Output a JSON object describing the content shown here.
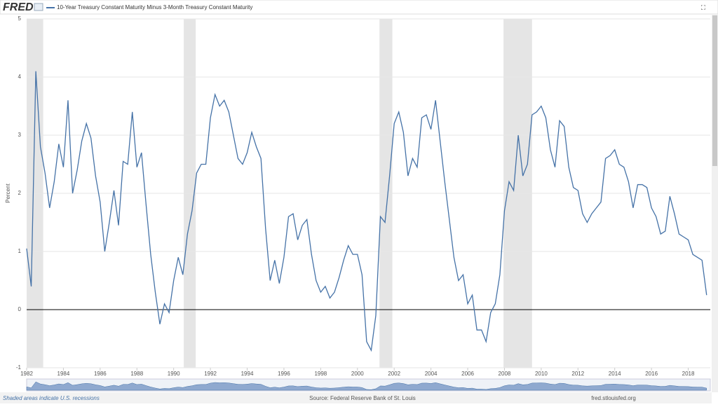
{
  "chart_data": {
    "type": "line",
    "brand": "FRED",
    "ylabel": "Percent",
    "x": [
      1982,
      1982.25,
      1982.5,
      1982.75,
      1983,
      1983.25,
      1983.5,
      1983.75,
      1984,
      1984.25,
      1984.5,
      1984.75,
      1985,
      1985.25,
      1985.5,
      1985.75,
      1986,
      1986.25,
      1986.5,
      1986.75,
      1987,
      1987.25,
      1987.5,
      1987.75,
      1988,
      1988.25,
      1988.5,
      1988.75,
      1989,
      1989.25,
      1989.5,
      1989.75,
      1990,
      1990.25,
      1990.5,
      1990.75,
      1991,
      1991.25,
      1991.5,
      1991.75,
      1992,
      1992.25,
      1992.5,
      1992.75,
      1993,
      1993.25,
      1993.5,
      1993.75,
      1994,
      1994.25,
      1994.5,
      1994.75,
      1995,
      1995.25,
      1995.5,
      1995.75,
      1996,
      1996.25,
      1996.5,
      1996.75,
      1997,
      1997.25,
      1997.5,
      1997.75,
      1998,
      1998.25,
      1998.5,
      1998.75,
      1999,
      1999.25,
      1999.5,
      1999.75,
      2000,
      2000.25,
      2000.5,
      2000.75,
      2001,
      2001.25,
      2001.5,
      2001.75,
      2002,
      2002.25,
      2002.5,
      2002.75,
      2003,
      2003.25,
      2003.5,
      2003.75,
      2004,
      2004.25,
      2004.5,
      2004.75,
      2005,
      2005.25,
      2005.5,
      2005.75,
      2006,
      2006.25,
      2006.5,
      2006.75,
      2007,
      2007.25,
      2007.5,
      2007.75,
      2008,
      2008.25,
      2008.5,
      2008.75,
      2009,
      2009.25,
      2009.5,
      2009.75,
      2010,
      2010.25,
      2010.5,
      2010.75,
      2011,
      2011.25,
      2011.5,
      2011.75,
      2012,
      2012.25,
      2012.5,
      2012.75,
      2013,
      2013.25,
      2013.5,
      2013.75,
      2014,
      2014.25,
      2014.5,
      2014.75,
      2015,
      2015.25,
      2015.5,
      2015.75,
      2016,
      2016.25,
      2016.5,
      2016.75,
      2017,
      2017.25,
      2017.5,
      2017.75,
      2018,
      2018.25,
      2018.5,
      2018.75,
      2019
    ],
    "series": [
      {
        "name": "10-Year Treasury Constant Maturity Minus 3-Month Treasury Constant Maturity",
        "color": "#4572a7",
        "values": [
          1.05,
          0.4,
          4.1,
          2.8,
          2.35,
          1.75,
          2.2,
          2.85,
          2.45,
          3.6,
          2.0,
          2.4,
          2.9,
          3.2,
          2.95,
          2.3,
          1.85,
          1.0,
          1.5,
          2.05,
          1.45,
          2.55,
          2.5,
          3.4,
          2.45,
          2.7,
          1.8,
          0.95,
          0.3,
          -0.25,
          0.1,
          -0.05,
          0.5,
          0.9,
          0.6,
          1.3,
          1.7,
          2.35,
          2.5,
          2.5,
          3.3,
          3.7,
          3.5,
          3.6,
          3.4,
          3.0,
          2.6,
          2.5,
          2.7,
          3.05,
          2.8,
          2.6,
          1.4,
          0.5,
          0.85,
          0.45,
          0.9,
          1.6,
          1.65,
          1.2,
          1.45,
          1.55,
          0.95,
          0.5,
          0.3,
          0.4,
          0.2,
          0.3,
          0.55,
          0.85,
          1.1,
          0.95,
          0.95,
          0.6,
          -0.55,
          -0.7,
          -0.1,
          1.6,
          1.5,
          2.3,
          3.2,
          3.4,
          3.05,
          2.3,
          2.6,
          2.45,
          3.3,
          3.35,
          3.1,
          3.6,
          2.9,
          2.2,
          1.55,
          0.9,
          0.5,
          0.6,
          0.1,
          0.25,
          -0.35,
          -0.35,
          -0.55,
          -0.05,
          0.1,
          0.6,
          1.7,
          2.2,
          2.05,
          3.0,
          2.3,
          2.5,
          3.35,
          3.4,
          3.5,
          3.3,
          2.75,
          2.45,
          3.25,
          3.15,
          2.45,
          2.1,
          2.05,
          1.65,
          1.5,
          1.65,
          1.75,
          1.85,
          2.6,
          2.65,
          2.75,
          2.5,
          2.45,
          2.2,
          1.75,
          2.15,
          2.15,
          2.1,
          1.75,
          1.6,
          1.3,
          1.35,
          1.95,
          1.65,
          1.3,
          1.25,
          1.2,
          0.95,
          0.9,
          0.85,
          0.25
        ]
      }
    ],
    "xlim": [
      1982,
      2019.2
    ],
    "xticks": [
      1982,
      1984,
      1986,
      1988,
      1990,
      1992,
      1994,
      1996,
      1998,
      2000,
      2002,
      2004,
      2006,
      2008,
      2010,
      2012,
      2014,
      2016,
      2018
    ],
    "ylim": [
      -1,
      5
    ],
    "yticks": [
      -1,
      0,
      1,
      2,
      3,
      4,
      5
    ],
    "grid": true,
    "recessions": [
      [
        1982,
        1982.9
      ],
      [
        1990.55,
        1991.2
      ],
      [
        2001.2,
        2001.9
      ],
      [
        2007.95,
        2009.5
      ]
    ],
    "note": "Shaded areas indicate U.S. recessions",
    "source": "Source: Federal Reserve Bank of St. Louis",
    "site": "fred.stlouisfed.org"
  }
}
